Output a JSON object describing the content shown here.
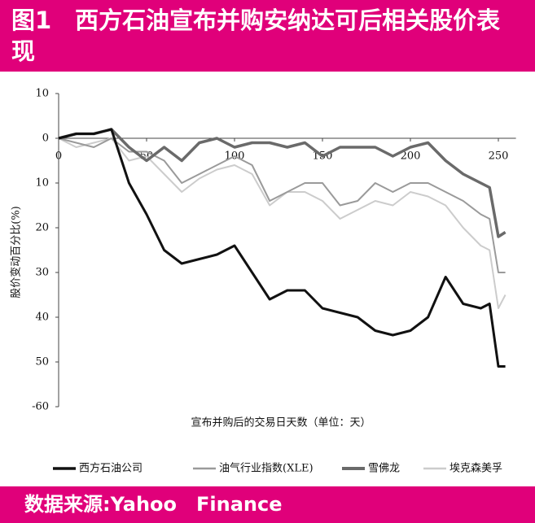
{
  "chart_data": {
    "type": "line",
    "title": "图1　西方石油宣布并购安纳达可后相关股价表现",
    "x_label": "宣布并购后的交易日天数（单位：天）",
    "y_label": "股价变动百分比(%)",
    "source": "数据来源:Yahoo　Finance",
    "x": [
      0,
      10,
      20,
      30,
      40,
      50,
      60,
      70,
      80,
      90,
      100,
      110,
      120,
      130,
      140,
      150,
      160,
      170,
      180,
      190,
      200,
      210,
      220,
      230,
      240,
      245,
      250,
      254
    ],
    "series": [
      {
        "name": "西方石油公司",
        "color": "#111111",
        "values": [
          0,
          1,
          1,
          2,
          -10,
          -17,
          -25,
          -28,
          -27,
          -26,
          -24,
          -30,
          -36,
          -34,
          -34,
          -38,
          -39,
          -40,
          -43,
          -44,
          -43,
          -40,
          -31,
          -37,
          -38,
          -37,
          -51,
          -51
        ]
      },
      {
        "name": "油气行业指数(XLE)",
        "color": "#9a9a9a",
        "values": [
          0,
          -1,
          -2,
          0,
          -3,
          -3,
          -5,
          -10,
          -8,
          -6,
          -4,
          -6,
          -14,
          -12,
          -10,
          -10,
          -15,
          -14,
          -10,
          -12,
          -10,
          -10,
          -12,
          -14,
          -17,
          -18,
          -30,
          -30
        ]
      },
      {
        "name": "雪佛龙",
        "color": "#6a6a6a",
        "values": [
          0,
          1,
          1,
          2,
          -2,
          -5,
          -2,
          -5,
          -1,
          0,
          -2,
          -1,
          -1,
          -2,
          -1,
          -4,
          -2,
          -2,
          -2,
          -4,
          -2,
          -1,
          -5,
          -8,
          -10,
          -11,
          -22,
          -21
        ]
      },
      {
        "name": "埃克森美孚",
        "color": "#cccccc",
        "values": [
          0,
          -2,
          -1,
          0,
          -5,
          -4,
          -8,
          -12,
          -9,
          -7,
          -6,
          -8,
          -15,
          -12,
          -12,
          -14,
          -18,
          -16,
          -14,
          -15,
          -12,
          -13,
          -15,
          -20,
          -24,
          -25,
          -38,
          -35
        ]
      }
    ],
    "xlim": [
      0,
      260
    ],
    "xticks": [
      0,
      50,
      100,
      150,
      200,
      250
    ],
    "ylim": [
      -60,
      10
    ],
    "yticks": [
      10,
      0,
      {
        "value": -10,
        "label": "10"
      },
      {
        "value": -20,
        "label": "20"
      },
      {
        "value": -30,
        "label": "30"
      },
      {
        "value": -40,
        "label": "40"
      },
      {
        "value": -50,
        "label": "50"
      },
      -60
    ],
    "grid": false
  }
}
